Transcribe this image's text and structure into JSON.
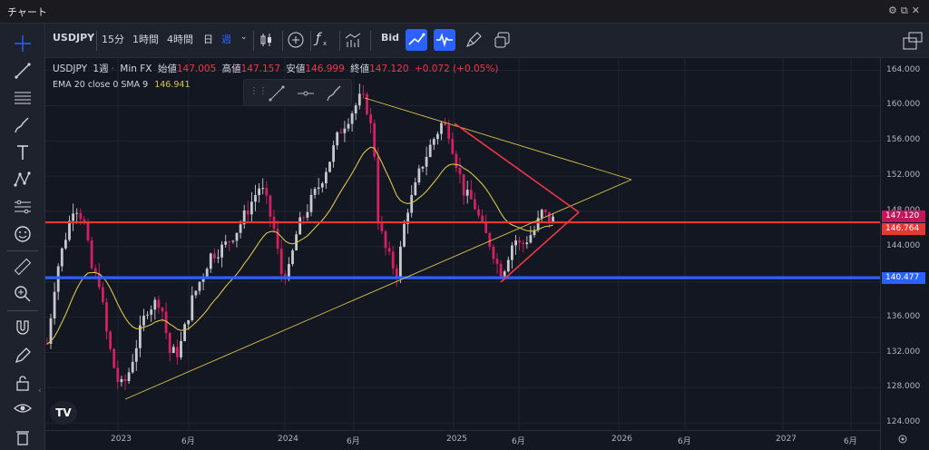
{
  "window": {
    "title": "チャート"
  },
  "toolbar": {
    "symbol": "USDJPY",
    "intervals": [
      "15分",
      "1時間",
      "4時間",
      "日",
      "週"
    ],
    "active_interval": "週",
    "bid_label": "Bid"
  },
  "legend": {
    "symbol": "USDJPY",
    "interval": "1週",
    "source": "Min FX",
    "open_label": "始値",
    "open": "147.005",
    "high_label": "高値",
    "high": "147.157",
    "low_label": "安値",
    "low": "146.999",
    "close_label": "終値",
    "close": "147.120",
    "change": "+0.072 (+0.05%)",
    "indicator_label": "EMA 20 close 0 SMA 9",
    "indicator_value": "146.941"
  },
  "price_tags": {
    "last": "147.120",
    "red_line": "146.764",
    "blue_line": "140.477"
  },
  "colors": {
    "up": "#c7c9ce",
    "down": "#d3205f",
    "ema": "#d9c54a",
    "red_line": "#e53935",
    "blue_line": "#2962ff"
  },
  "chart_data": {
    "type": "candlestick",
    "y_ticks": [
      "164.000",
      "160.000",
      "156.000",
      "152.000",
      "148.000",
      "144.000",
      "140.000",
      "136.000",
      "132.000",
      "128.000",
      "124.000"
    ],
    "x_ticks": [
      "2023",
      "6月",
      "2024",
      "6月",
      "2025",
      "6月",
      "2026",
      "6月",
      "2027",
      "6月"
    ],
    "ylim": [
      123.2,
      165.4
    ],
    "horizontal_lines": [
      146.764,
      140.477
    ]
  }
}
